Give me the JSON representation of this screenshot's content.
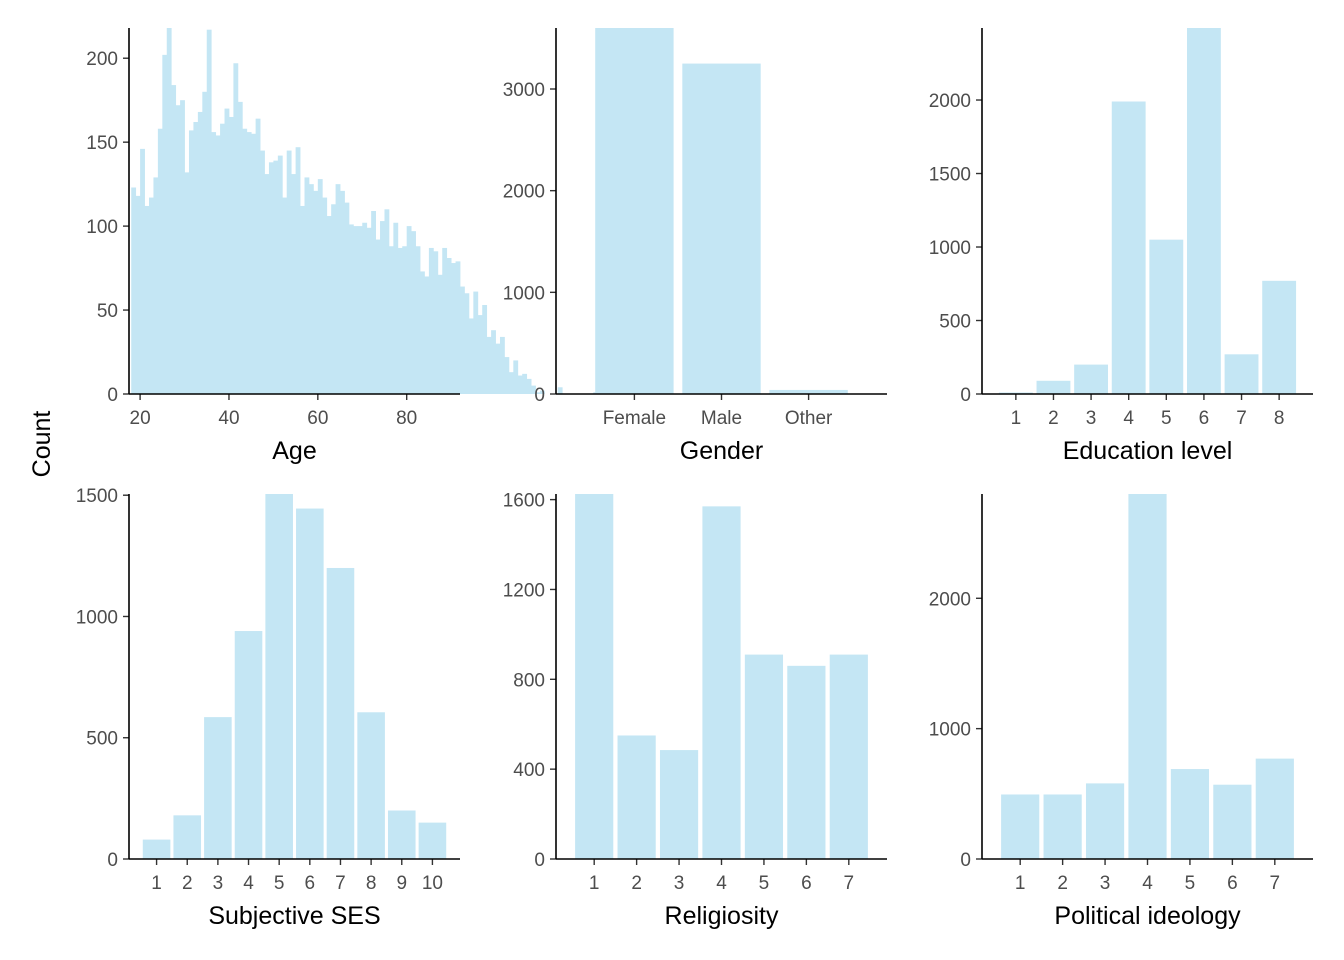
{
  "figure": {
    "ylabel": "Count"
  },
  "colors": {
    "bar_fill": "#c4e6f4",
    "axis": "#000000",
    "tick_text": "#4d4d4d"
  },
  "chart_data": [
    {
      "type": "bar",
      "variant": "histogram",
      "xlabel": "Age",
      "ylabel": "Count",
      "xlim": [
        17.5,
        92
      ],
      "ylim": [
        0,
        218
      ],
      "xticks": [
        20,
        40,
        60,
        80
      ],
      "yticks": [
        0,
        50,
        100,
        150,
        200
      ],
      "bin_start": 18,
      "bin_width": 1,
      "values": [
        123,
        118,
        146,
        112,
        117,
        129,
        158,
        202,
        218,
        184,
        172,
        175,
        132,
        157,
        162,
        168,
        180,
        217,
        156,
        154,
        161,
        170,
        165,
        197,
        174,
        158,
        156,
        155,
        164,
        145,
        131,
        138,
        139,
        142,
        117,
        145,
        131,
        147,
        112,
        129,
        125,
        121,
        128,
        117,
        106,
        113,
        125,
        121,
        114,
        101,
        100,
        100,
        102,
        99,
        109,
        92,
        103,
        110,
        88,
        102,
        87,
        88,
        100,
        97,
        88,
        73,
        70,
        87,
        85,
        71,
        87,
        81,
        78,
        79,
        64,
        60,
        45,
        61,
        47,
        53,
        34,
        38,
        30,
        34,
        22,
        13,
        20,
        11,
        12,
        9,
        5,
        1,
        2,
        0,
        0,
        0,
        4,
        0,
        0,
        0,
        0,
        0,
        0,
        0,
        1
      ],
      "grid": false,
      "legend": "none"
    },
    {
      "type": "bar",
      "xlabel": "Gender",
      "ylabel": "Count",
      "categories": [
        "Female",
        "Male",
        "Other"
      ],
      "values": [
        3600,
        3250,
        40
      ],
      "ylim": [
        0,
        3600
      ],
      "yticks": [
        0,
        1000,
        2000,
        3000
      ],
      "grid": false,
      "legend": "none"
    },
    {
      "type": "bar",
      "xlabel": "Education level",
      "ylabel": "Count",
      "categories": [
        "1",
        "2",
        "3",
        "4",
        "5",
        "6",
        "7",
        "8"
      ],
      "values": [
        10,
        90,
        200,
        1990,
        1050,
        2490,
        270,
        770
      ],
      "ylim": [
        0,
        2490
      ],
      "yticks": [
        0,
        500,
        1000,
        1500,
        2000
      ],
      "grid": false,
      "legend": "none"
    },
    {
      "type": "bar",
      "xlabel": "Subjective SES",
      "ylabel": "Count",
      "categories": [
        "1",
        "2",
        "3",
        "4",
        "5",
        "6",
        "7",
        "8",
        "9",
        "10"
      ],
      "values": [
        80,
        180,
        585,
        940,
        1505,
        1445,
        1200,
        605,
        200,
        150
      ],
      "ylim": [
        0,
        1505
      ],
      "yticks": [
        0,
        500,
        1000,
        1500
      ],
      "grid": false,
      "legend": "none"
    },
    {
      "type": "bar",
      "xlabel": "Religiosity",
      "ylabel": "Count",
      "categories": [
        "1",
        "2",
        "3",
        "4",
        "5",
        "6",
        "7"
      ],
      "values": [
        1625,
        550,
        485,
        1570,
        910,
        860,
        910
      ],
      "ylim": [
        0,
        1625
      ],
      "yticks": [
        0,
        400,
        800,
        1200,
        1600
      ],
      "grid": false,
      "legend": "none"
    },
    {
      "type": "bar",
      "xlabel": "Political ideology",
      "ylabel": "Count",
      "categories": [
        "1",
        "2",
        "3",
        "4",
        "5",
        "6",
        "7"
      ],
      "values": [
        495,
        495,
        580,
        2800,
        690,
        570,
        770
      ],
      "ylim": [
        0,
        2800
      ],
      "yticks": [
        0,
        1000,
        2000
      ],
      "grid": false,
      "legend": "none"
    }
  ]
}
